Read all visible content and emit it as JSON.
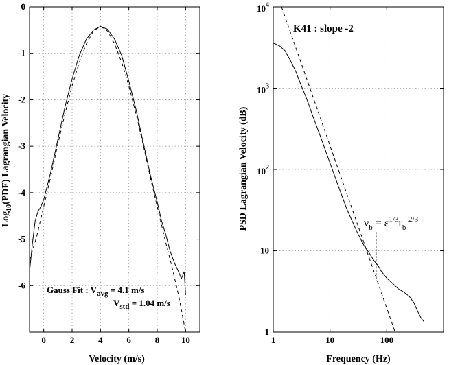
{
  "chart_data": [
    {
      "type": "line",
      "xlabel": "Velocity (m/s)",
      "ylabel_prefix": "Log",
      "ylabel_sub": "10",
      "ylabel_suffix": "(PDF) Lagrangian Velocity",
      "xlim": [
        -1,
        11
      ],
      "ylim": [
        -7,
        0
      ],
      "grid": true,
      "x_ticks": [
        {
          "value": 0,
          "label": "0"
        },
        {
          "value": 2,
          "label": "2"
        },
        {
          "value": 4,
          "label": "4"
        },
        {
          "value": 6,
          "label": "6"
        },
        {
          "value": 8,
          "label": "8"
        },
        {
          "value": 10,
          "label": "10"
        }
      ],
      "y_ticks": [
        {
          "value": 0,
          "label": "0"
        },
        {
          "value": -1,
          "label": "-1"
        },
        {
          "value": -2,
          "label": "-2"
        },
        {
          "value": -3,
          "label": "-3"
        },
        {
          "value": -4,
          "label": "-4"
        },
        {
          "value": -5,
          "label": "-5"
        },
        {
          "value": -6,
          "label": "-6"
        }
      ],
      "series": [
        {
          "style": "solid",
          "x": [
            -1,
            -0.8,
            -0.6,
            -0.4,
            -0.2,
            0,
            0.5,
            1,
            1.5,
            2,
            2.5,
            3,
            3.5,
            4,
            4.5,
            5,
            5.5,
            6,
            6.5,
            7,
            7.5,
            8,
            8.3,
            8.6,
            8.9,
            9.2,
            9.5,
            9.7,
            9.9,
            10
          ],
          "y": [
            -5.7,
            -5.1,
            -4.6,
            -4.4,
            -4.3,
            -4.15,
            -3.55,
            -2.85,
            -2.15,
            -1.55,
            -1.05,
            -0.7,
            -0.5,
            -0.42,
            -0.48,
            -0.7,
            -1.05,
            -1.6,
            -2.2,
            -2.9,
            -3.6,
            -4.2,
            -4.6,
            -4.9,
            -5.25,
            -5.5,
            -5.7,
            -5.85,
            -5.7,
            -6.2
          ]
        },
        {
          "style": "dashed",
          "x": [
            -1,
            -0.5,
            0,
            0.5,
            1,
            1.5,
            2,
            2.5,
            3,
            3.5,
            4,
            4.5,
            5,
            5.5,
            6,
            6.5,
            7,
            7.5,
            8,
            8.5,
            9,
            9.5,
            10
          ],
          "y": [
            -5.45,
            -4.95,
            -4.3,
            -3.65,
            -2.95,
            -2.3,
            -1.7,
            -1.2,
            -0.8,
            -0.52,
            -0.42,
            -0.52,
            -0.8,
            -1.2,
            -1.7,
            -2.3,
            -2.95,
            -3.65,
            -4.3,
            -4.95,
            -5.55,
            -6.2,
            -7.0
          ]
        }
      ],
      "annotations": {
        "gauss_fit_prefix": "Gauss Fit : V",
        "avg_sub": "avg",
        "avg_value": " = 4.1 m/s",
        "std_prefix": "V",
        "std_sub": "std",
        "std_value": " = 1.04 m/s"
      }
    },
    {
      "type": "line",
      "xlabel": "Frequency (Hz)",
      "ylabel": "PSD Lagrangian Velocity (dB)",
      "xscale": "log",
      "yscale": "log",
      "xlim": [
        1,
        1000
      ],
      "ylim": [
        1,
        10000
      ],
      "grid": true,
      "x_ticks": [
        {
          "value": 1,
          "label": "1",
          "exp": ""
        },
        {
          "value": 10,
          "label": "10",
          "exp": ""
        },
        {
          "value": 100,
          "label": "100",
          "exp": ""
        }
      ],
      "y_ticks": [
        {
          "value": 1,
          "label": "1",
          "exp": ""
        },
        {
          "value": 10,
          "label": "10",
          "exp": ""
        },
        {
          "value": 100,
          "label": "10",
          "exp": "2"
        },
        {
          "value": 1000,
          "label": "10",
          "exp": "3"
        },
        {
          "value": 10000,
          "label": "10",
          "exp": "4"
        }
      ],
      "series": [
        {
          "style": "solid",
          "x": [
            1,
            1.3,
            1.6,
            2,
            2.5,
            3,
            4,
            5,
            7,
            10,
            15,
            20,
            30,
            40,
            50,
            60,
            70,
            80,
            100,
            130,
            160,
            200,
            250,
            300,
            350,
            400,
            450
          ],
          "y": [
            3600,
            3300,
            2900,
            2200,
            1600,
            1150,
            700,
            450,
            240,
            120,
            55,
            32,
            17,
            11.5,
            9.2,
            7.5,
            6.6,
            5.6,
            4.6,
            3.9,
            3.4,
            3.1,
            2.75,
            2.3,
            1.8,
            1.5,
            1.35
          ]
        },
        {
          "style": "dashed",
          "x": [
            1.4,
            160
          ],
          "y": [
            10000,
            0.77
          ]
        }
      ],
      "annotations": {
        "k41_label": "K41 : slope -2",
        "nu": "ν",
        "nu_sub": "b",
        "eq": " = ε",
        "eps_sup": "1/3",
        "r": "r",
        "r_sub": "b",
        "r_sup": "-2/3",
        "marker_x": 65
      }
    }
  ]
}
